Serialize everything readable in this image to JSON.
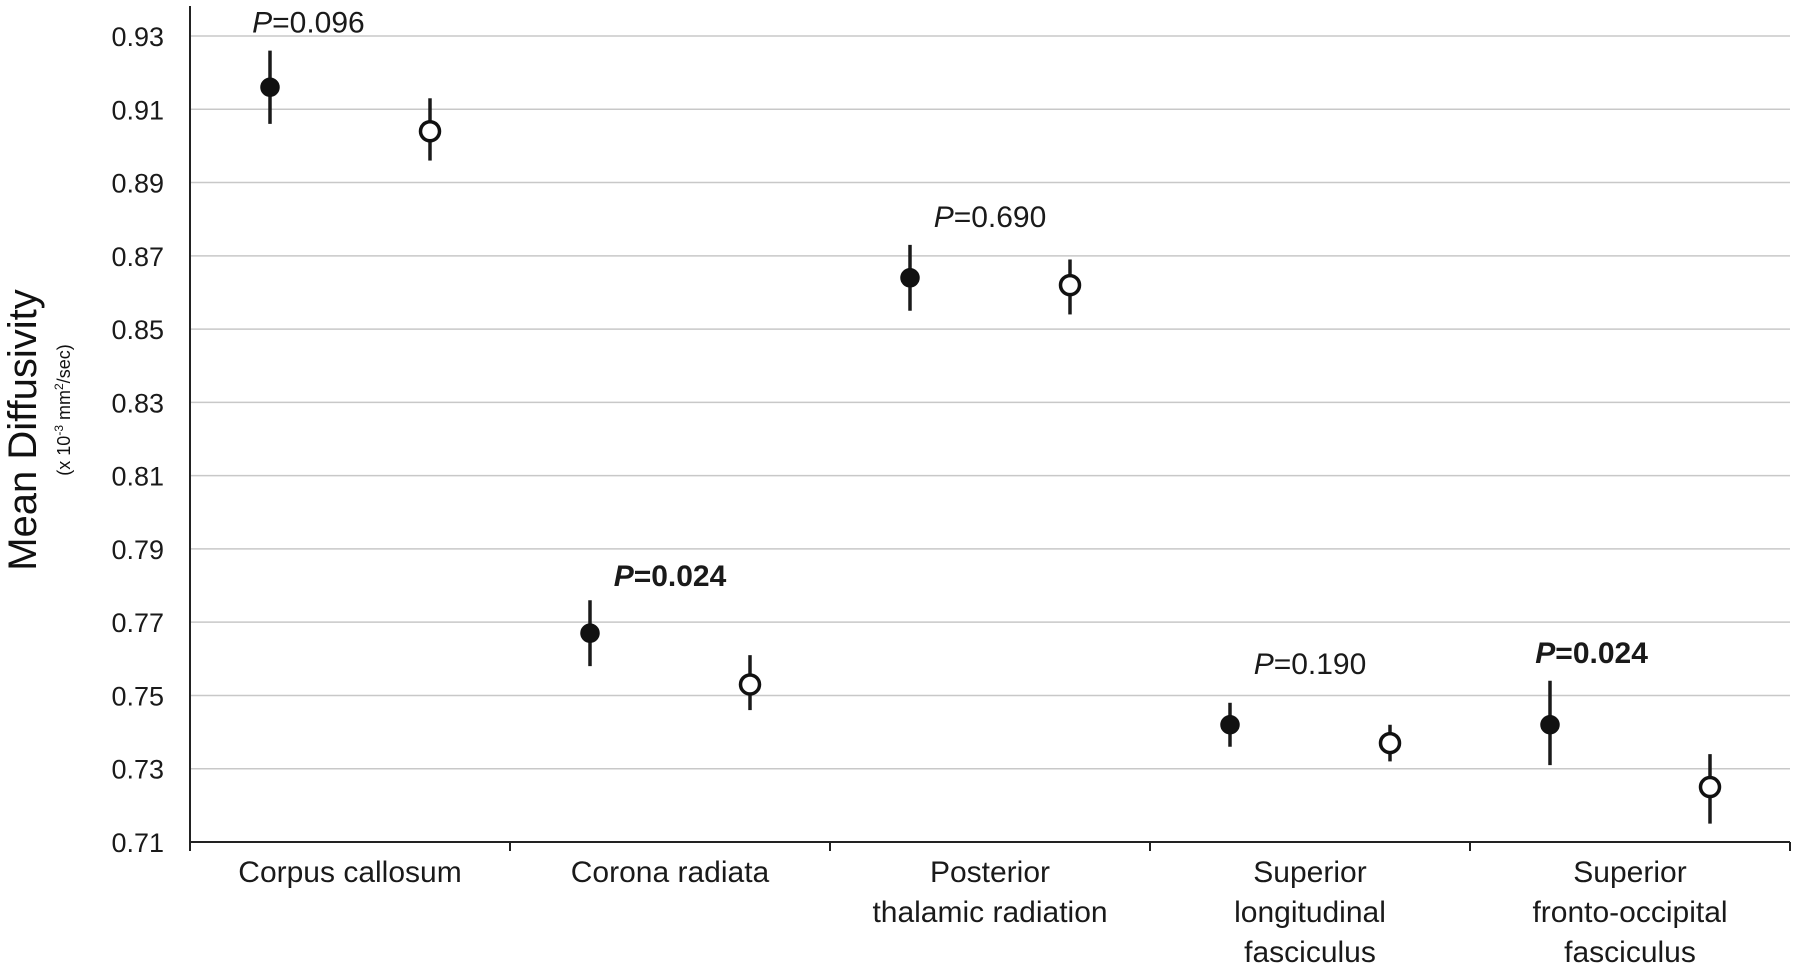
{
  "chart_data": {
    "type": "scatter",
    "ylabel": "Mean Diffusivity",
    "ylabel_unit": {
      "prefix": "(x 10",
      "exp1": "-3",
      "middle": " mm",
      "exp2": "2",
      "suffix": "/sec)"
    },
    "ylim": [
      0.71,
      0.93
    ],
    "yticks": [
      "0.71",
      "0.73",
      "0.75",
      "0.77",
      "0.79",
      "0.81",
      "0.83",
      "0.85",
      "0.87",
      "0.89",
      "0.91",
      "0.93"
    ],
    "grid": true,
    "categories": [
      [
        "Corpus callosum"
      ],
      [
        "Corona radiata"
      ],
      [
        "Posterior",
        "thalamic radiation"
      ],
      [
        "Superior",
        "longitudinal",
        "fasciculus"
      ],
      [
        "Superior",
        "fronto-occipital",
        "fasciculus"
      ]
    ],
    "series": [
      {
        "marker": "filled",
        "color": "#111111",
        "values": [
          0.916,
          0.767,
          0.864,
          0.742,
          0.742
        ],
        "err_low": [
          0.906,
          0.758,
          0.855,
          0.736,
          0.731
        ],
        "err_high": [
          0.926,
          0.776,
          0.873,
          0.748,
          0.754
        ]
      },
      {
        "marker": "open",
        "color": "#111111",
        "values": [
          0.904,
          0.753,
          0.862,
          0.737,
          0.725
        ],
        "err_low": [
          0.896,
          0.746,
          0.854,
          0.732,
          0.715
        ],
        "err_high": [
          0.913,
          0.761,
          0.869,
          0.742,
          0.734
        ]
      }
    ],
    "annotations": [
      {
        "p": "P",
        "text": "=0.096",
        "bold": false
      },
      {
        "p": "P",
        "text": "=0.024",
        "bold": true
      },
      {
        "p": "P",
        "text": "=0.690",
        "bold": false
      },
      {
        "p": "P",
        "text": "=0.190",
        "bold": false
      },
      {
        "p": "P",
        "text": "=0.024",
        "bold": true
      }
    ]
  }
}
